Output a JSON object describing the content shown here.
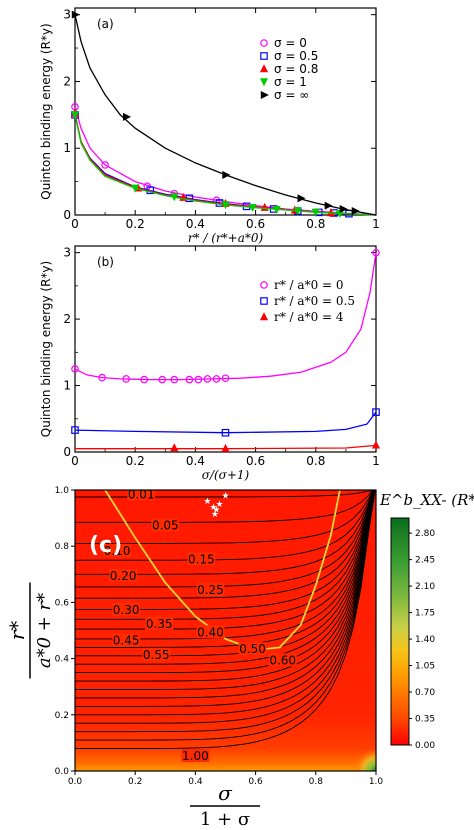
{
  "chart_data": [
    {
      "panel": "(a)",
      "type": "line",
      "ylabel": "Quinton binding energy (R*y)",
      "xlabel": "r* / (r*+a*0)",
      "xlim": [
        0,
        1
      ],
      "ylim": [
        0,
        3.1
      ],
      "xticks": [
        "0",
        "0.2",
        "0.4",
        "0.6",
        "0.8",
        "1"
      ],
      "yticks": [
        "0",
        "1",
        "2",
        "3"
      ],
      "legend_position": "top-right",
      "series": [
        {
          "name": "σ = 0",
          "color": "#ff00ff",
          "marker": "circle",
          "curve": [
            [
              0,
              1.62
            ],
            [
              0.02,
              1.3
            ],
            [
              0.05,
              1.0
            ],
            [
              0.1,
              0.75
            ],
            [
              0.2,
              0.5
            ],
            [
              0.3,
              0.36
            ],
            [
              0.4,
              0.27
            ],
            [
              0.5,
              0.2
            ],
            [
              0.6,
              0.14
            ],
            [
              0.7,
              0.09
            ],
            [
              0.8,
              0.055
            ],
            [
              0.9,
              0.025
            ],
            [
              1,
              0
            ]
          ],
          "points": [
            [
              0,
              1.62
            ],
            [
              0.1,
              0.75
            ],
            [
              0.24,
              0.43
            ],
            [
              0.33,
              0.32
            ],
            [
              0.47,
              0.22
            ]
          ]
        },
        {
          "name": "σ = 0.5",
          "color": "#0000ff",
          "marker": "square",
          "curve": [
            [
              0,
              1.5
            ],
            [
              0.02,
              1.1
            ],
            [
              0.05,
              0.85
            ],
            [
              0.1,
              0.62
            ],
            [
              0.2,
              0.42
            ],
            [
              0.3,
              0.31
            ],
            [
              0.4,
              0.23
            ],
            [
              0.5,
              0.17
            ],
            [
              0.6,
              0.12
            ],
            [
              0.7,
              0.08
            ],
            [
              0.8,
              0.045
            ],
            [
              0.9,
              0.02
            ],
            [
              1,
              0
            ]
          ],
          "points": [
            [
              0,
              1.5
            ],
            [
              0.25,
              0.37
            ],
            [
              0.38,
              0.25
            ],
            [
              0.48,
              0.18
            ],
            [
              0.57,
              0.13
            ],
            [
              0.66,
              0.09
            ],
            [
              0.74,
              0.06
            ],
            [
              0.81,
              0.04
            ],
            [
              0.86,
              0.03
            ],
            [
              0.91,
              0.02
            ]
          ]
        },
        {
          "name": "σ = 0.8",
          "color": "#ff0000",
          "marker": "triangle-up",
          "curve": [
            [
              0,
              1.52
            ],
            [
              0.02,
              1.1
            ],
            [
              0.05,
              0.84
            ],
            [
              0.1,
              0.6
            ],
            [
              0.2,
              0.41
            ],
            [
              0.3,
              0.3
            ],
            [
              0.4,
              0.22
            ],
            [
              0.5,
              0.16
            ],
            [
              0.6,
              0.12
            ],
            [
              0.7,
              0.08
            ],
            [
              0.8,
              0.045
            ],
            [
              0.9,
              0.02
            ],
            [
              1,
              0
            ]
          ],
          "points": [
            [
              0,
              1.52
            ],
            [
              0.21,
              0.4
            ],
            [
              0.36,
              0.26
            ],
            [
              0.5,
              0.17
            ],
            [
              0.63,
              0.11
            ],
            [
              0.73,
              0.07
            ],
            [
              0.85,
              0.03
            ]
          ]
        },
        {
          "name": "σ = 1",
          "color": "#00cc00",
          "marker": "triangle-down",
          "curve": [
            [
              0,
              1.5
            ],
            [
              0.02,
              1.08
            ],
            [
              0.05,
              0.82
            ],
            [
              0.1,
              0.58
            ],
            [
              0.2,
              0.4
            ],
            [
              0.3,
              0.29
            ],
            [
              0.4,
              0.21
            ],
            [
              0.5,
              0.15
            ],
            [
              0.6,
              0.11
            ],
            [
              0.7,
              0.075
            ],
            [
              0.8,
              0.04
            ],
            [
              0.9,
              0.02
            ],
            [
              1,
              0
            ]
          ],
          "points": [
            [
              0,
              1.5
            ],
            [
              0.2,
              0.4
            ],
            [
              0.33,
              0.27
            ],
            [
              0.5,
              0.15
            ],
            [
              0.59,
              0.11
            ],
            [
              0.67,
              0.08
            ],
            [
              0.74,
              0.06
            ],
            [
              0.8,
              0.04
            ],
            [
              0.88,
              0.02
            ]
          ]
        },
        {
          "name": "σ = ∞",
          "color": "#000000",
          "marker": "triangle-right",
          "curve": [
            [
              0,
              3.0
            ],
            [
              0.02,
              2.6
            ],
            [
              0.05,
              2.2
            ],
            [
              0.1,
              1.8
            ],
            [
              0.15,
              1.5
            ],
            [
              0.2,
              1.3
            ],
            [
              0.3,
              1.0
            ],
            [
              0.4,
              0.78
            ],
            [
              0.5,
              0.6
            ],
            [
              0.6,
              0.44
            ],
            [
              0.7,
              0.3
            ],
            [
              0.8,
              0.18
            ],
            [
              0.9,
              0.08
            ],
            [
              1,
              0
            ]
          ],
          "points": [
            [
              0,
              3.0
            ],
            [
              0.17,
              1.47
            ],
            [
              0.5,
              0.6
            ],
            [
              0.75,
              0.25
            ],
            [
              0.84,
              0.14
            ],
            [
              0.89,
              0.09
            ],
            [
              0.93,
              0.06
            ]
          ]
        }
      ]
    },
    {
      "panel": "(b)",
      "type": "line",
      "ylabel": "Quinton binding energy (R*y)",
      "xlabel": "σ/(σ+1)",
      "xlim": [
        0,
        1
      ],
      "ylim": [
        0,
        3.1
      ],
      "xticks": [
        "0",
        "0.2",
        "0.4",
        "0.6",
        "0.8",
        "1"
      ],
      "yticks": [
        "0",
        "1",
        "2",
        "3"
      ],
      "legend_position": "top-right",
      "series": [
        {
          "name": "r* / a*0 = 0",
          "color": "#ff00ff",
          "marker": "circle",
          "curve": [
            [
              0,
              1.25
            ],
            [
              0.04,
              1.16
            ],
            [
              0.09,
              1.12
            ],
            [
              0.15,
              1.1
            ],
            [
              0.25,
              1.09
            ],
            [
              0.35,
              1.09
            ],
            [
              0.45,
              1.1
            ],
            [
              0.55,
              1.11
            ],
            [
              0.65,
              1.14
            ],
            [
              0.75,
              1.2
            ],
            [
              0.85,
              1.35
            ],
            [
              0.9,
              1.5
            ],
            [
              0.95,
              1.85
            ],
            [
              0.98,
              2.4
            ],
            [
              1,
              3.0
            ]
          ],
          "points": [
            [
              0,
              1.25
            ],
            [
              0.09,
              1.12
            ],
            [
              0.17,
              1.1
            ],
            [
              0.23,
              1.09
            ],
            [
              0.29,
              1.09
            ],
            [
              0.33,
              1.09
            ],
            [
              0.38,
              1.09
            ],
            [
              0.41,
              1.09
            ],
            [
              0.44,
              1.1
            ],
            [
              0.47,
              1.1
            ],
            [
              0.5,
              1.11
            ],
            [
              1,
              3.0
            ]
          ]
        },
        {
          "name": "r* / a*0 = 0.5",
          "color": "#0000ff",
          "marker": "square",
          "curve": [
            [
              0,
              0.33
            ],
            [
              0.2,
              0.31
            ],
            [
              0.5,
              0.29
            ],
            [
              0.8,
              0.31
            ],
            [
              0.9,
              0.34
            ],
            [
              0.97,
              0.42
            ],
            [
              1,
              0.6
            ]
          ],
          "points": [
            [
              0,
              0.33
            ],
            [
              0.5,
              0.29
            ],
            [
              1,
              0.6
            ]
          ]
        },
        {
          "name": "r* / a*0 = 4",
          "color": "#ff0000",
          "marker": "triangle-up",
          "curve": [
            [
              0,
              0.05
            ],
            [
              0.5,
              0.05
            ],
            [
              0.9,
              0.06
            ],
            [
              1,
              0.1
            ]
          ],
          "points": [
            [
              0.33,
              0.06
            ],
            [
              0.5,
              0.05
            ],
            [
              1,
              0.1
            ]
          ]
        }
      ]
    },
    {
      "panel": "(c)",
      "type": "heatmap",
      "xlabel": "σ / (1+σ)",
      "ylabel": "r* / (a*0 + r*)",
      "xlim": [
        0,
        1
      ],
      "ylim": [
        0,
        1
      ],
      "xticks": [
        "0.0",
        "0.2",
        "0.4",
        "0.6",
        "0.8",
        "1.0"
      ],
      "yticks": [
        "0.0",
        "0.2",
        "0.4",
        "0.6",
        "0.8",
        "1.0"
      ],
      "colorbar_label": "E^b_XX- (R*y)",
      "colorbar_ticks": [
        "0.00",
        "0.35",
        "0.70",
        "1.05",
        "1.40",
        "1.75",
        "2.10",
        "2.45",
        "2.80"
      ],
      "colorbar_range": [
        0,
        3.0
      ],
      "contour_levels": [
        {
          "label": "0.01",
          "y": 0.975
        },
        {
          "label": "0.05",
          "y": 0.885
        },
        {
          "label": "0.10",
          "y": 0.81
        },
        {
          "label": "0.15",
          "y": 0.75
        },
        {
          "label": "0.20",
          "y": 0.7
        },
        {
          "label": "0.25",
          "y": 0.655
        },
        {
          "label": "0.30",
          "y": 0.615
        },
        {
          "label": "0.35",
          "y": 0.575
        },
        {
          "label": "0.40",
          "y": 0.54
        },
        {
          "label": "0.45",
          "y": 0.505
        },
        {
          "label": "0.50",
          "y": 0.47
        },
        {
          "label": "0.55",
          "y": 0.44
        },
        {
          "label": "0.60",
          "y": 0.41
        },
        {
          "label": "",
          "y": 0.38
        },
        {
          "label": "",
          "y": 0.35
        },
        {
          "label": "",
          "y": 0.32
        },
        {
          "label": "",
          "y": 0.29
        },
        {
          "label": "",
          "y": 0.26
        },
        {
          "label": "",
          "y": 0.23
        },
        {
          "label": "",
          "y": 0.2
        },
        {
          "label": "",
          "y": 0.17
        },
        {
          "label": "",
          "y": 0.14
        },
        {
          "label": "",
          "y": 0.11
        },
        {
          "label": "1.00",
          "y": 0.08
        }
      ],
      "label_positions": {
        "0.01": [
          0.22,
          0.98
        ],
        "0.05": [
          0.3,
          0.87
        ],
        "0.10": [
          0.14,
          0.78
        ],
        "0.15": [
          0.42,
          0.75
        ],
        "0.20": [
          0.16,
          0.69
        ],
        "0.25": [
          0.45,
          0.64
        ],
        "0.30": [
          0.17,
          0.57
        ],
        "0.35": [
          0.28,
          0.52
        ],
        "0.40": [
          0.45,
          0.49
        ],
        "0.45": [
          0.17,
          0.46
        ],
        "0.50": [
          0.59,
          0.43
        ],
        "0.55": [
          0.27,
          0.41
        ],
        "0.60": [
          0.69,
          0.39
        ],
        "1.00": [
          0.4,
          0.05
        ]
      },
      "yellow_curve": [
        [
          0.1,
          1.0
        ],
        [
          0.2,
          0.83
        ],
        [
          0.3,
          0.67
        ],
        [
          0.4,
          0.55
        ],
        [
          0.5,
          0.47
        ],
        [
          0.6,
          0.43
        ],
        [
          0.68,
          0.44
        ],
        [
          0.75,
          0.52
        ],
        [
          0.8,
          0.66
        ],
        [
          0.85,
          0.84
        ],
        [
          0.88,
          1.0
        ]
      ],
      "stars": [
        [
          0.44,
          0.96
        ],
        [
          0.46,
          0.94
        ],
        [
          0.47,
          0.93
        ],
        [
          0.48,
          0.95
        ],
        [
          0.5,
          0.98
        ],
        [
          0.465,
          0.915
        ]
      ]
    }
  ]
}
